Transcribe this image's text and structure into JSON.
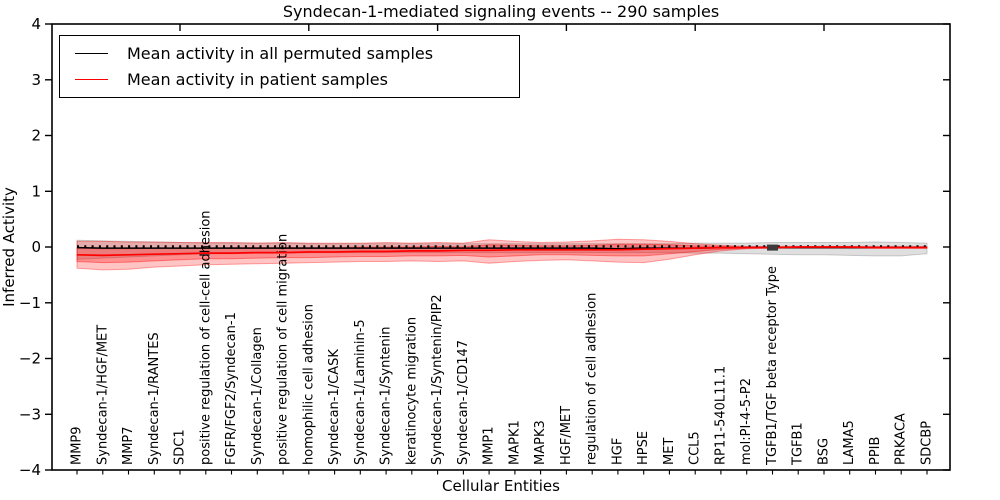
{
  "title": "Syndecan-1-mediated signaling events -- 290 samples",
  "xlabel": "Cellular Entities",
  "ylabel": "Inferred Activity",
  "legend": [
    {
      "label": "Mean activity in all permuted samples",
      "color": "#000000"
    },
    {
      "label": "Mean activity in patient samples",
      "color": "#ff0000"
    }
  ],
  "chart_data": {
    "type": "line",
    "title": "Syndecan-1-mediated signaling events -- 290 samples",
    "xlabel": "Cellular Entities",
    "ylabel": "Inferred Activity",
    "ylim": [
      -4,
      4
    ],
    "yticks": [
      -4,
      -3,
      -2,
      -1,
      0,
      1,
      2,
      3,
      4
    ],
    "grid": false,
    "legend_position": "upper left",
    "categories": [
      "MMP9",
      "Syndecan-1/HGF/MET",
      "MMP7",
      "Syndecan-1/RANTES",
      "SDC1",
      "positive regulation of cell-cell adhesion",
      "FGFR/FGF2/Syndecan-1",
      "Syndecan-1/Collagen",
      "positive regulation of cell migration",
      "homophilic cell adhesion",
      "Syndecan-1/CASK",
      "Syndecan-1/Laminin-5",
      "Syndecan-1/Syntenin",
      "keratinocyte migration",
      "Syndecan-1/Syntenin/PIP2",
      "Syndecan-1/CD147",
      "MMP1",
      "MAPK1",
      "MAPK3",
      "HGF/MET",
      "regulation of cell adhesion",
      "HGF",
      "HPSE",
      "MET",
      "CCL5",
      "RP11-540L11.1",
      "mol:PI-4-5-P2",
      "TGFB1/TGF beta receptor Type",
      "TGFB1",
      "BSG",
      "LAMA5",
      "PPIB",
      "PRKACA",
      "SDCBP"
    ],
    "series": [
      {
        "name": "Mean activity in all permuted samples",
        "color": "#000000",
        "values": [
          -0.01,
          -0.02,
          -0.02,
          -0.02,
          -0.02,
          -0.02,
          -0.02,
          -0.02,
          -0.02,
          -0.02,
          -0.02,
          -0.02,
          -0.02,
          -0.02,
          -0.02,
          -0.02,
          -0.02,
          -0.02,
          -0.02,
          -0.02,
          -0.02,
          -0.03,
          -0.02,
          -0.02,
          -0.02,
          -0.01,
          -0.01,
          -0.01,
          -0.01,
          -0.01,
          -0.01,
          -0.01,
          -0.01,
          -0.01
        ]
      },
      {
        "name": "Mean activity in patient samples",
        "color": "#ff0000",
        "values": [
          -0.14,
          -0.15,
          -0.14,
          -0.13,
          -0.12,
          -0.11,
          -0.11,
          -0.1,
          -0.1,
          -0.09,
          -0.09,
          -0.08,
          -0.08,
          -0.07,
          -0.07,
          -0.06,
          -0.06,
          -0.05,
          -0.05,
          -0.05,
          -0.05,
          -0.05,
          -0.04,
          -0.03,
          -0.02,
          -0.01,
          -0.01,
          -0.01,
          0.0,
          0.0,
          0.0,
          -0.01,
          -0.01,
          -0.01
        ]
      }
    ],
    "permuted_dotted_value": 0.01,
    "bands": [
      {
        "name": "permuted-samples-band",
        "color": "#808080",
        "opacity": 0.25,
        "upper": [
          0.12,
          0.11,
          0.1,
          0.09,
          0.08,
          0.07,
          0.07,
          0.07,
          0.07,
          0.06,
          0.06,
          0.06,
          0.06,
          0.06,
          0.06,
          0.06,
          0.06,
          0.06,
          0.06,
          0.06,
          0.06,
          0.06,
          0.06,
          0.06,
          0.07,
          0.07,
          0.07,
          0.08,
          0.08,
          0.08,
          0.08,
          0.09,
          0.08,
          0.07
        ],
        "lower": [
          -0.22,
          -0.2,
          -0.18,
          -0.16,
          -0.14,
          -0.12,
          -0.12,
          -0.11,
          -0.11,
          -0.1,
          -0.1,
          -0.1,
          -0.1,
          -0.1,
          -0.1,
          -0.1,
          -0.1,
          -0.1,
          -0.1,
          -0.1,
          -0.1,
          -0.1,
          -0.1,
          -0.1,
          -0.11,
          -0.11,
          -0.12,
          -0.13,
          -0.14,
          -0.14,
          -0.15,
          -0.16,
          -0.16,
          -0.12
        ]
      },
      {
        "name": "patient-samples-outer-band",
        "color": "#ff0000",
        "opacity": 0.23,
        "upper": [
          0.1,
          0.1,
          0.09,
          0.09,
          0.08,
          0.08,
          0.08,
          0.07,
          0.08,
          0.07,
          0.07,
          0.07,
          0.08,
          0.07,
          0.08,
          0.07,
          0.13,
          0.1,
          0.08,
          0.09,
          0.11,
          0.14,
          0.13,
          0.1,
          0.06,
          0.03,
          0.01,
          0.01,
          0.01,
          0.01,
          0.01,
          0.01,
          0.01,
          0.01
        ],
        "lower": [
          -0.38,
          -0.41,
          -0.4,
          -0.36,
          -0.34,
          -0.32,
          -0.31,
          -0.3,
          -0.29,
          -0.28,
          -0.27,
          -0.26,
          -0.26,
          -0.25,
          -0.26,
          -0.25,
          -0.29,
          -0.26,
          -0.24,
          -0.23,
          -0.25,
          -0.27,
          -0.28,
          -0.22,
          -0.14,
          -0.07,
          -0.03,
          -0.02,
          -0.02,
          -0.02,
          -0.02,
          -0.02,
          -0.02,
          -0.02
        ]
      },
      {
        "name": "patient-samples-inner-band",
        "color": "#ff0000",
        "opacity": 0.27,
        "upper": [
          -0.02,
          -0.03,
          -0.03,
          -0.02,
          -0.02,
          -0.02,
          -0.01,
          -0.01,
          -0.01,
          -0.01,
          -0.01,
          0.0,
          0.0,
          0.0,
          0.01,
          0.0,
          0.04,
          0.03,
          0.02,
          0.02,
          0.03,
          0.05,
          0.05,
          0.04,
          0.02,
          0.01,
          0.0,
          0.0,
          0.0,
          0.0,
          0.0,
          0.0,
          0.0,
          0.0
        ],
        "lower": [
          -0.26,
          -0.28,
          -0.27,
          -0.25,
          -0.23,
          -0.21,
          -0.21,
          -0.2,
          -0.19,
          -0.19,
          -0.18,
          -0.17,
          -0.17,
          -0.16,
          -0.16,
          -0.15,
          -0.18,
          -0.16,
          -0.14,
          -0.14,
          -0.15,
          -0.16,
          -0.16,
          -0.12,
          -0.08,
          -0.04,
          -0.02,
          -0.01,
          -0.01,
          -0.01,
          -0.01,
          -0.02,
          -0.02,
          -0.02
        ]
      }
    ],
    "marker": {
      "category_index": 27,
      "value": -0.01,
      "color": "#3b3b3b"
    }
  }
}
